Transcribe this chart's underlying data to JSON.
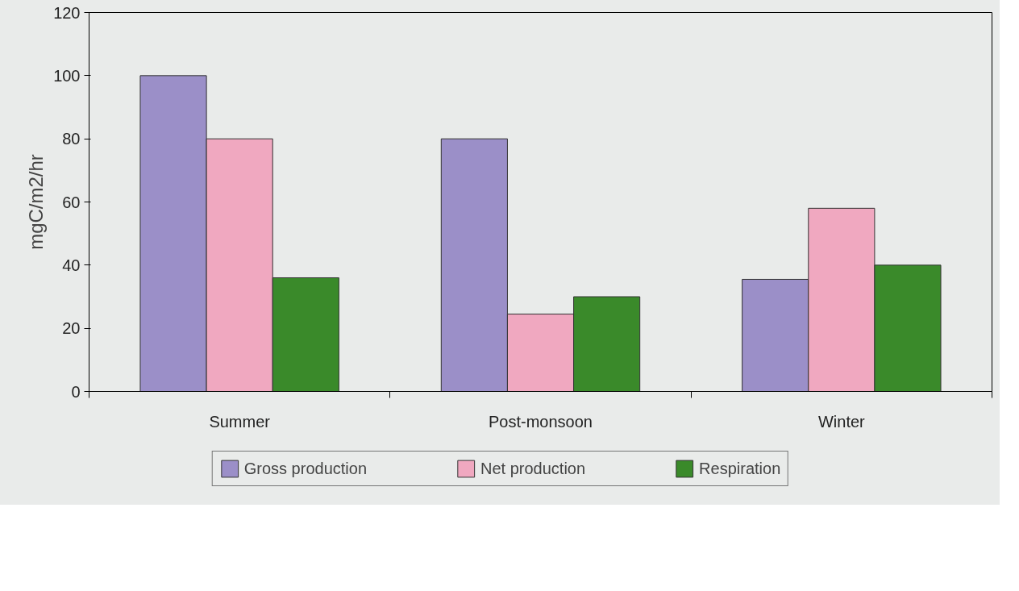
{
  "chart_data": {
    "type": "bar",
    "ylabel": "mgC/m2/hr",
    "categories": [
      "Summer",
      "Post-monsoon",
      "Winter"
    ],
    "series": [
      {
        "name": "Gross production",
        "color": "#9b8fc8",
        "values": [
          100,
          80,
          35.5
        ]
      },
      {
        "name": "Net production",
        "color": "#f0a8c0",
        "values": [
          80,
          24.5,
          58
        ]
      },
      {
        "name": "Respiration",
        "color": "#3a8a2a",
        "values": [
          36,
          30,
          40
        ]
      }
    ],
    "ylim": [
      0,
      120
    ],
    "yticks": [
      0,
      20,
      40,
      60,
      80,
      100,
      120
    ],
    "grid": false,
    "legend": "bottom"
  }
}
